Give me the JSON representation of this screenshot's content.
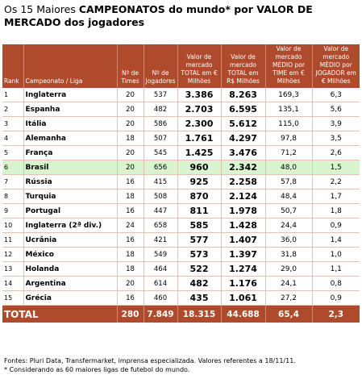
{
  "title": {
    "lead": "Os 15 Maiores ",
    "strong": "CAMPEONATOS do mundo* por VALOR DE MERCADO dos jogadores"
  },
  "headers": {
    "rank": "Rank",
    "league": "Campeonato / Liga",
    "teams": "Nº de Times",
    "players": "Nº de Jogadores",
    "total_eur": "Valor de mercado TOTAL em € Milhões",
    "total_brl": "Valor de mercado TOTAL em R$ Milhões",
    "avg_team": "Valor de mercado MÉDIO por TIME em € Milhões",
    "avg_player": "Valor de mercado MÉDIO por JOGADOR em € Milhões"
  },
  "rows": [
    {
      "rank": "1",
      "league": "Inglaterra",
      "teams": "20",
      "players": "537",
      "total_eur": "3.386",
      "total_brl": "8.263",
      "avg_team": "169,3",
      "avg_player": "6,3"
    },
    {
      "rank": "2",
      "league": "Espanha",
      "teams": "20",
      "players": "482",
      "total_eur": "2.703",
      "total_brl": "6.595",
      "avg_team": "135,1",
      "avg_player": "5,6"
    },
    {
      "rank": "3",
      "league": "Itália",
      "teams": "20",
      "players": "586",
      "total_eur": "2.300",
      "total_brl": "5.612",
      "avg_team": "115,0",
      "avg_player": "3,9"
    },
    {
      "rank": "4",
      "league": "Alemanha",
      "teams": "18",
      "players": "507",
      "total_eur": "1.761",
      "total_brl": "4.297",
      "avg_team": "97,8",
      "avg_player": "3,5"
    },
    {
      "rank": "5",
      "league": "França",
      "teams": "20",
      "players": "545",
      "total_eur": "1.425",
      "total_brl": "3.476",
      "avg_team": "71,2",
      "avg_player": "2,6"
    },
    {
      "rank": "6",
      "league": "Brasil",
      "teams": "20",
      "players": "656",
      "total_eur": "960",
      "total_brl": "2.342",
      "avg_team": "48,0",
      "avg_player": "1,5"
    },
    {
      "rank": "7",
      "league": "Rússia",
      "teams": "16",
      "players": "415",
      "total_eur": "925",
      "total_brl": "2.258",
      "avg_team": "57,8",
      "avg_player": "2,2"
    },
    {
      "rank": "8",
      "league": "Turquia",
      "teams": "18",
      "players": "508",
      "total_eur": "870",
      "total_brl": "2.124",
      "avg_team": "48,4",
      "avg_player": "1,7"
    },
    {
      "rank": "9",
      "league": "Portugal",
      "teams": "16",
      "players": "447",
      "total_eur": "811",
      "total_brl": "1.978",
      "avg_team": "50,7",
      "avg_player": "1,8"
    },
    {
      "rank": "10",
      "league": "Inglaterra (2ª div.)",
      "teams": "24",
      "players": "658",
      "total_eur": "585",
      "total_brl": "1.428",
      "avg_team": "24,4",
      "avg_player": "0,9"
    },
    {
      "rank": "11",
      "league": "Ucrânia",
      "teams": "16",
      "players": "421",
      "total_eur": "577",
      "total_brl": "1.407",
      "avg_team": "36,0",
      "avg_player": "1,4"
    },
    {
      "rank": "12",
      "league": "México",
      "teams": "18",
      "players": "549",
      "total_eur": "573",
      "total_brl": "1.397",
      "avg_team": "31,8",
      "avg_player": "1,0"
    },
    {
      "rank": "13",
      "league": "Holanda",
      "teams": "18",
      "players": "464",
      "total_eur": "522",
      "total_brl": "1.274",
      "avg_team": "29,0",
      "avg_player": "1,1"
    },
    {
      "rank": "14",
      "league": "Argentina",
      "teams": "20",
      "players": "614",
      "total_eur": "482",
      "total_brl": "1.176",
      "avg_team": "24,1",
      "avg_player": "0,8"
    },
    {
      "rank": "15",
      "league": "Grécia",
      "teams": "16",
      "players": "460",
      "total_eur": "435",
      "total_brl": "1.061",
      "avg_team": "27,2",
      "avg_player": "0,9"
    }
  ],
  "highlight_rank": "6",
  "highlight_color": "#d8f5cf",
  "header_color": "#b04a2c",
  "total": {
    "label": "TOTAL",
    "teams": "280",
    "players": "7.849",
    "total_eur": "18.315",
    "total_brl": "44.688",
    "avg_team": "65,4",
    "avg_player": "2,3"
  },
  "footnotes": {
    "source": "Fontes: Pluri Data, Transfermarket, imprensa especializada. Valores referentes a 18/11/11.",
    "note": "* Considerando as 60 maiores ligas de futebol do mundo."
  }
}
